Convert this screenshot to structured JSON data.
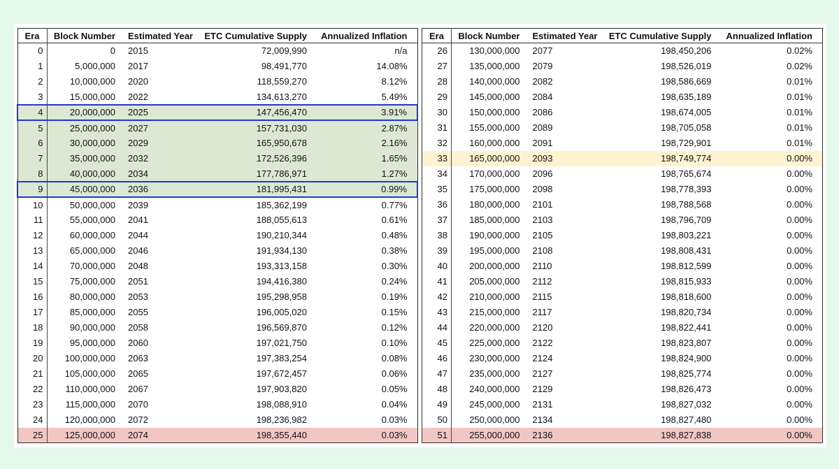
{
  "colors": {
    "mint": "#e4f8ec",
    "green": "#dce8d4",
    "pink": "#f1c7c3",
    "yellow": "#fdf3d1",
    "blue": "#1e38d4",
    "border": "#2e2e2e"
  },
  "chart_data": {
    "type": "table",
    "title": "",
    "columns": [
      "Era",
      "Block Number",
      "Estimated Year",
      "ETC Cumulative Supply",
      "Annualized Inflation"
    ],
    "highlights": {
      "green_rows": [
        4,
        5,
        6,
        7,
        8,
        9
      ],
      "boxed_rows": [
        4,
        9
      ],
      "pink_rows": [
        25,
        51
      ],
      "yellow_rows": [
        33
      ]
    },
    "panels": [
      {
        "side": "left",
        "rows": [
          [
            "0",
            "0",
            "2015",
            "72,009,990",
            "n/a"
          ],
          [
            "1",
            "5,000,000",
            "2017",
            "98,491,770",
            "14.08%"
          ],
          [
            "2",
            "10,000,000",
            "2020",
            "118,559,270",
            "8.12%"
          ],
          [
            "3",
            "15,000,000",
            "2022",
            "134,613,270",
            "5.49%"
          ],
          [
            "4",
            "20,000,000",
            "2025",
            "147,456,470",
            "3.91%"
          ],
          [
            "5",
            "25,000,000",
            "2027",
            "157,731,030",
            "2.87%"
          ],
          [
            "6",
            "30,000,000",
            "2029",
            "165,950,678",
            "2.16%"
          ],
          [
            "7",
            "35,000,000",
            "2032",
            "172,526,396",
            "1.65%"
          ],
          [
            "8",
            "40,000,000",
            "2034",
            "177,786,971",
            "1.27%"
          ],
          [
            "9",
            "45,000,000",
            "2036",
            "181,995,431",
            "0.99%"
          ],
          [
            "10",
            "50,000,000",
            "2039",
            "185,362,199",
            "0.77%"
          ],
          [
            "11",
            "55,000,000",
            "2041",
            "188,055,613",
            "0.61%"
          ],
          [
            "12",
            "60,000,000",
            "2044",
            "190,210,344",
            "0.48%"
          ],
          [
            "13",
            "65,000,000",
            "2046",
            "191,934,130",
            "0.38%"
          ],
          [
            "14",
            "70,000,000",
            "2048",
            "193,313,158",
            "0.30%"
          ],
          [
            "15",
            "75,000,000",
            "2051",
            "194,416,380",
            "0.24%"
          ],
          [
            "16",
            "80,000,000",
            "2053",
            "195,298,958",
            "0.19%"
          ],
          [
            "17",
            "85,000,000",
            "2055",
            "196,005,020",
            "0.15%"
          ],
          [
            "18",
            "90,000,000",
            "2058",
            "196,569,870",
            "0.12%"
          ],
          [
            "19",
            "95,000,000",
            "2060",
            "197,021,750",
            "0.10%"
          ],
          [
            "20",
            "100,000,000",
            "2063",
            "197,383,254",
            "0.08%"
          ],
          [
            "21",
            "105,000,000",
            "2065",
            "197,672,457",
            "0.06%"
          ],
          [
            "22",
            "110,000,000",
            "2067",
            "197,903,820",
            "0.05%"
          ],
          [
            "23",
            "115,000,000",
            "2070",
            "198,088,910",
            "0.04%"
          ],
          [
            "24",
            "120,000,000",
            "2072",
            "198,236,982",
            "0.03%"
          ],
          [
            "25",
            "125,000,000",
            "2074",
            "198,355,440",
            "0.03%"
          ]
        ]
      },
      {
        "side": "right",
        "rows": [
          [
            "26",
            "130,000,000",
            "2077",
            "198,450,206",
            "0.02%"
          ],
          [
            "27",
            "135,000,000",
            "2079",
            "198,526,019",
            "0.02%"
          ],
          [
            "28",
            "140,000,000",
            "2082",
            "198,586,669",
            "0.01%"
          ],
          [
            "29",
            "145,000,000",
            "2084",
            "198,635,189",
            "0.01%"
          ],
          [
            "30",
            "150,000,000",
            "2086",
            "198,674,005",
            "0.01%"
          ],
          [
            "31",
            "155,000,000",
            "2089",
            "198,705,058",
            "0.01%"
          ],
          [
            "32",
            "160,000,000",
            "2091",
            "198,729,901",
            "0.01%"
          ],
          [
            "33",
            "165,000,000",
            "2093",
            "198,749,774",
            "0.00%"
          ],
          [
            "34",
            "170,000,000",
            "2096",
            "198,765,674",
            "0.00%"
          ],
          [
            "35",
            "175,000,000",
            "2098",
            "198,778,393",
            "0.00%"
          ],
          [
            "36",
            "180,000,000",
            "2101",
            "198,788,568",
            "0.00%"
          ],
          [
            "37",
            "185,000,000",
            "2103",
            "198,796,709",
            "0.00%"
          ],
          [
            "38",
            "190,000,000",
            "2105",
            "198,803,221",
            "0.00%"
          ],
          [
            "39",
            "195,000,000",
            "2108",
            "198,808,431",
            "0.00%"
          ],
          [
            "40",
            "200,000,000",
            "2110",
            "198,812,599",
            "0.00%"
          ],
          [
            "41",
            "205,000,000",
            "2112",
            "198,815,933",
            "0.00%"
          ],
          [
            "42",
            "210,000,000",
            "2115",
            "198,818,600",
            "0.00%"
          ],
          [
            "43",
            "215,000,000",
            "2117",
            "198,820,734",
            "0.00%"
          ],
          [
            "44",
            "220,000,000",
            "2120",
            "198,822,441",
            "0.00%"
          ],
          [
            "45",
            "225,000,000",
            "2122",
            "198,823,807",
            "0.00%"
          ],
          [
            "46",
            "230,000,000",
            "2124",
            "198,824,900",
            "0.00%"
          ],
          [
            "47",
            "235,000,000",
            "2127",
            "198,825,774",
            "0.00%"
          ],
          [
            "48",
            "240,000,000",
            "2129",
            "198,826,473",
            "0.00%"
          ],
          [
            "49",
            "245,000,000",
            "2131",
            "198,827,032",
            "0.00%"
          ],
          [
            "50",
            "250,000,000",
            "2134",
            "198,827,480",
            "0.00%"
          ],
          [
            "51",
            "255,000,000",
            "2136",
            "198,827,838",
            "0.00%"
          ]
        ]
      }
    ]
  }
}
